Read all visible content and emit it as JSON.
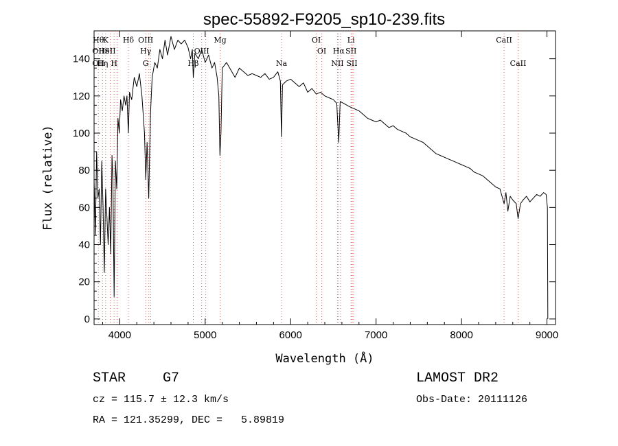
{
  "chart_data": {
    "type": "line",
    "title": "spec-55892-F9205_sp10-239.fits",
    "xlabel": "Wavelength (Å)",
    "ylabel": "Flux (relative)",
    "xlim": [
      3700,
      9100
    ],
    "ylim": [
      -3,
      155
    ],
    "xticks": [
      4000,
      5000,
      6000,
      7000,
      8000,
      9000
    ],
    "yticks": [
      0,
      20,
      40,
      60,
      80,
      100,
      120,
      140
    ],
    "grid": false,
    "line_color": "#000000",
    "marker_color": "#e06060",
    "series": [
      {
        "points": [
          [
            3700,
            75
          ],
          [
            3715,
            45
          ],
          [
            3730,
            90
          ],
          [
            3745,
            65
          ],
          [
            3760,
            70
          ],
          [
            3775,
            40
          ],
          [
            3790,
            85
          ],
          [
            3805,
            60
          ],
          [
            3820,
            25
          ],
          [
            3835,
            70
          ],
          [
            3850,
            55
          ],
          [
            3865,
            40
          ],
          [
            3880,
            60
          ],
          [
            3895,
            35
          ],
          [
            3910,
            88
          ],
          [
            3920,
            75
          ],
          [
            3935,
            12
          ],
          [
            3950,
            85
          ],
          [
            3965,
            70
          ],
          [
            3980,
            108
          ],
          [
            3995,
            100
          ],
          [
            4010,
            118
          ],
          [
            4030,
            112
          ],
          [
            4050,
            120
          ],
          [
            4070,
            115
          ],
          [
            4085,
            120
          ],
          [
            4101,
            100
          ],
          [
            4115,
            122
          ],
          [
            4140,
            118
          ],
          [
            4170,
            130
          ],
          [
            4200,
            125
          ],
          [
            4230,
            132
          ],
          [
            4260,
            120
          ],
          [
            4290,
            100
          ],
          [
            4305,
            75
          ],
          [
            4320,
            95
          ],
          [
            4340,
            65
          ],
          [
            4360,
            110
          ],
          [
            4380,
            130
          ],
          [
            4410,
            138
          ],
          [
            4440,
            135
          ],
          [
            4470,
            145
          ],
          [
            4500,
            140
          ],
          [
            4530,
            150
          ],
          [
            4560,
            142
          ],
          [
            4600,
            152
          ],
          [
            4640,
            145
          ],
          [
            4680,
            150
          ],
          [
            4720,
            148
          ],
          [
            4760,
            150
          ],
          [
            4800,
            146
          ],
          [
            4830,
            140
          ],
          [
            4850,
            145
          ],
          [
            4861,
            130
          ],
          [
            4880,
            143
          ],
          [
            4920,
            140
          ],
          [
            4960,
            145
          ],
          [
            5000,
            138
          ],
          [
            5040,
            142
          ],
          [
            5080,
            135
          ],
          [
            5110,
            138
          ],
          [
            5140,
            130
          ],
          [
            5160,
            120
          ],
          [
            5173,
            88
          ],
          [
            5185,
            100
          ],
          [
            5200,
            135
          ],
          [
            5250,
            138
          ],
          [
            5300,
            134
          ],
          [
            5350,
            130
          ],
          [
            5400,
            135
          ],
          [
            5450,
            133
          ],
          [
            5500,
            131
          ],
          [
            5550,
            132
          ],
          [
            5600,
            131
          ],
          [
            5650,
            130
          ],
          [
            5700,
            132
          ],
          [
            5750,
            129
          ],
          [
            5800,
            130
          ],
          [
            5850,
            133
          ],
          [
            5880,
            128
          ],
          [
            5893,
            98
          ],
          [
            5905,
            126
          ],
          [
            5950,
            128
          ],
          [
            6000,
            129
          ],
          [
            6050,
            127
          ],
          [
            6100,
            125
          ],
          [
            6150,
            127
          ],
          [
            6200,
            122
          ],
          [
            6250,
            124
          ],
          [
            6300,
            121
          ],
          [
            6350,
            122
          ],
          [
            6400,
            120
          ],
          [
            6450,
            119
          ],
          [
            6500,
            118
          ],
          [
            6540,
            116
          ],
          [
            6563,
            95
          ],
          [
            6580,
            117
          ],
          [
            6620,
            116
          ],
          [
            6660,
            115
          ],
          [
            6700,
            114
          ],
          [
            6750,
            113
          ],
          [
            6800,
            112
          ],
          [
            6850,
            110
          ],
          [
            6900,
            108
          ],
          [
            6950,
            107
          ],
          [
            7000,
            106
          ],
          [
            7050,
            107
          ],
          [
            7100,
            105
          ],
          [
            7150,
            103
          ],
          [
            7200,
            104
          ],
          [
            7250,
            102
          ],
          [
            7300,
            101
          ],
          [
            7350,
            100
          ],
          [
            7400,
            98
          ],
          [
            7450,
            97
          ],
          [
            7500,
            96
          ],
          [
            7550,
            95
          ],
          [
            7600,
            93
          ],
          [
            7650,
            91
          ],
          [
            7700,
            89
          ],
          [
            7750,
            88
          ],
          [
            7800,
            87
          ],
          [
            7850,
            86
          ],
          [
            7900,
            85
          ],
          [
            7950,
            84
          ],
          [
            8000,
            83
          ],
          [
            8050,
            82
          ],
          [
            8100,
            81
          ],
          [
            8150,
            79
          ],
          [
            8200,
            78
          ],
          [
            8250,
            77
          ],
          [
            8300,
            75
          ],
          [
            8350,
            73
          ],
          [
            8400,
            71
          ],
          [
            8450,
            70
          ],
          [
            8498,
            62
          ],
          [
            8520,
            68
          ],
          [
            8542,
            58
          ],
          [
            8570,
            66
          ],
          [
            8600,
            64
          ],
          [
            8640,
            62
          ],
          [
            8662,
            54
          ],
          [
            8690,
            62
          ],
          [
            8720,
            64
          ],
          [
            8760,
            66
          ],
          [
            8800,
            63
          ],
          [
            8840,
            65
          ],
          [
            8880,
            67
          ],
          [
            8920,
            66
          ],
          [
            8960,
            68
          ],
          [
            8990,
            67
          ],
          [
            9005,
            60
          ],
          [
            9010,
            0
          ]
        ]
      }
    ],
    "line_markers": [
      {
        "x": 3750,
        "labels": [
          "Hθ",
          "OII",
          "OII"
        ],
        "rows": [
          0,
          1,
          2
        ]
      },
      {
        "x": 3799,
        "labels": [
          "Hη"
        ],
        "rows": [
          2
        ]
      },
      {
        "x": 3835,
        "labels": [
          "K",
          "HeI"
        ],
        "rows": [
          0,
          1
        ]
      },
      {
        "x": 3889,
        "labels": [
          "SII"
        ],
        "rows": [
          1
        ]
      },
      {
        "x": 3934,
        "labels": [
          "H"
        ],
        "rows": [
          2
        ]
      },
      {
        "x": 3969,
        "labels": [],
        "rows": []
      },
      {
        "x": 4102,
        "labels": [
          "Hδ"
        ],
        "rows": [
          0
        ]
      },
      {
        "x": 4304,
        "labels": [
          "OIII",
          "Hγ",
          "G"
        ],
        "rows": [
          0,
          1,
          2
        ]
      },
      {
        "x": 4341,
        "labels": [],
        "rows": []
      },
      {
        "x": 4363,
        "labels": [],
        "rows": []
      },
      {
        "x": 4861,
        "labels": [
          "Hβ"
        ],
        "rows": [
          2
        ]
      },
      {
        "x": 4959,
        "labels": [
          "OIII"
        ],
        "rows": [
          1
        ]
      },
      {
        "x": 5007,
        "labels": [],
        "rows": []
      },
      {
        "x": 5175,
        "labels": [
          "Mg"
        ],
        "rows": [
          0
        ]
      },
      {
        "x": 5893,
        "labels": [
          "Na"
        ],
        "rows": [
          2
        ]
      },
      {
        "x": 6300,
        "labels": [
          "OI"
        ],
        "rows": [
          0
        ]
      },
      {
        "x": 6364,
        "labels": [
          "OI"
        ],
        "rows": [
          1
        ]
      },
      {
        "x": 6548,
        "labels": [
          "NII"
        ],
        "rows": [
          2
        ]
      },
      {
        "x": 6563,
        "labels": [
          "Hα"
        ],
        "rows": [
          1
        ]
      },
      {
        "x": 6583,
        "labels": [],
        "rows": []
      },
      {
        "x": 6707,
        "labels": [
          "Li",
          "SII"
        ],
        "rows": [
          0,
          1
        ]
      },
      {
        "x": 6717,
        "labels": [
          "SII"
        ],
        "rows": [
          2
        ]
      },
      {
        "x": 6731,
        "labels": [],
        "rows": []
      },
      {
        "x": 8498,
        "labels": [
          "CaII"
        ],
        "rows": [
          0
        ]
      },
      {
        "x": 8662,
        "labels": [
          "CaII"
        ],
        "rows": [
          2
        ]
      }
    ]
  },
  "info": {
    "class_label": "STAR",
    "subclass": "G7",
    "survey": "LAMOST DR2",
    "cz": "cz = 115.7 ± 12.3 km/s",
    "obs_date": "Obs-Date: 20111126",
    "coords": "RA = 121.35299, DEC =   5.89819"
  }
}
